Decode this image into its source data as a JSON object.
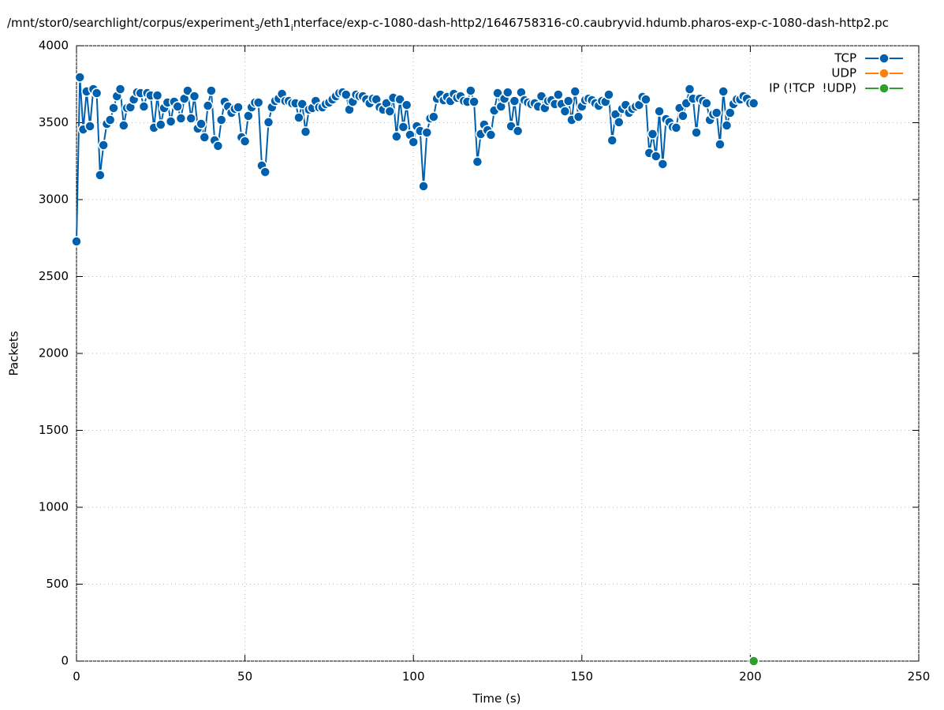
{
  "chart_data": {
    "type": "line",
    "title_parts": [
      "/mnt/stor0/searchlight/corpus/experiment",
      "3",
      "/eth1",
      "i",
      "nterface/exp-c-1080-dash-http2/1646758316-c0.caubryvid.hdumb.pharos-exp-c-1080-dash-http2.pc"
    ],
    "x_label": "Time (s)",
    "y_label": "Packets",
    "xlim": [
      0,
      250
    ],
    "xticks": [
      0,
      50,
      100,
      150,
      200,
      250
    ],
    "ylim": [
      0,
      4000
    ],
    "yticks": [
      0,
      500,
      1000,
      1500,
      2000,
      2500,
      3000,
      3500,
      4000
    ],
    "grid": true,
    "legend": "top-right",
    "series": [
      {
        "name": "TCP",
        "color": "#0060ad",
        "x": [
          0,
          1,
          2,
          3,
          4,
          5,
          6,
          7,
          8,
          9,
          10,
          11,
          12,
          13,
          14,
          15,
          16,
          17,
          18,
          19,
          20,
          21,
          22,
          23,
          24,
          25,
          26,
          27,
          28,
          29,
          30,
          31,
          32,
          33,
          34,
          35,
          36,
          37,
          38,
          39,
          40,
          41,
          42,
          43,
          44,
          45,
          46,
          47,
          48,
          49,
          50,
          51,
          52,
          53,
          54,
          55,
          56,
          57,
          58,
          59,
          60,
          61,
          62,
          63,
          64,
          65,
          66,
          67,
          68,
          69,
          70,
          71,
          72,
          73,
          74,
          75,
          76,
          77,
          78,
          79,
          80,
          81,
          82,
          83,
          84,
          85,
          86,
          87,
          88,
          89,
          90,
          91,
          92,
          93,
          94,
          95,
          96,
          97,
          98,
          99,
          100,
          101,
          102,
          103,
          104,
          105,
          106,
          107,
          108,
          109,
          110,
          111,
          112,
          113,
          114,
          115,
          116,
          117,
          118,
          119,
          120,
          121,
          122,
          123,
          124,
          125,
          126,
          127,
          128,
          129,
          130,
          131,
          132,
          133,
          134,
          135,
          136,
          137,
          138,
          139,
          140,
          141,
          142,
          143,
          144,
          145,
          146,
          147,
          148,
          149,
          150,
          151,
          152,
          153,
          154,
          155,
          156,
          157,
          158,
          159,
          160,
          161,
          162,
          163,
          164,
          165,
          166,
          167,
          168,
          169,
          170,
          171,
          172,
          173,
          174,
          175,
          176,
          177,
          178,
          179,
          180,
          181,
          182,
          183,
          184,
          185,
          186,
          187,
          188,
          189,
          190,
          191,
          192,
          193,
          194,
          195,
          196,
          197,
          198,
          199,
          200,
          201
        ],
        "values": [
          2728,
          3795,
          3456,
          3703,
          3477,
          3718,
          3692,
          3159,
          3354,
          3492,
          3518,
          3595,
          3672,
          3718,
          3482,
          3595,
          3600,
          3651,
          3697,
          3692,
          3605,
          3692,
          3677,
          3467,
          3677,
          3487,
          3595,
          3631,
          3508,
          3636,
          3605,
          3528,
          3656,
          3708,
          3528,
          3672,
          3462,
          3492,
          3405,
          3610,
          3708,
          3385,
          3349,
          3518,
          3636,
          3605,
          3564,
          3590,
          3600,
          3405,
          3379,
          3544,
          3600,
          3631,
          3631,
          3221,
          3179,
          3503,
          3600,
          3641,
          3656,
          3687,
          3641,
          3641,
          3626,
          3626,
          3533,
          3621,
          3441,
          3585,
          3595,
          3641,
          3600,
          3600,
          3621,
          3631,
          3651,
          3672,
          3692,
          3697,
          3682,
          3585,
          3636,
          3682,
          3672,
          3672,
          3651,
          3626,
          3656,
          3651,
          3600,
          3585,
          3626,
          3574,
          3662,
          3410,
          3651,
          3472,
          3615,
          3421,
          3374,
          3477,
          3446,
          3087,
          3436,
          3528,
          3538,
          3656,
          3682,
          3646,
          3667,
          3641,
          3687,
          3662,
          3672,
          3641,
          3636,
          3708,
          3636,
          3246,
          3426,
          3487,
          3451,
          3421,
          3579,
          3692,
          3605,
          3656,
          3697,
          3477,
          3641,
          3446,
          3697,
          3646,
          3631,
          3621,
          3626,
          3605,
          3672,
          3595,
          3641,
          3646,
          3621,
          3682,
          3621,
          3574,
          3641,
          3518,
          3703,
          3538,
          3605,
          3646,
          3656,
          3646,
          3626,
          3610,
          3641,
          3636,
          3682,
          3385,
          3554,
          3503,
          3590,
          3615,
          3564,
          3590,
          3605,
          3615,
          3667,
          3651,
          3303,
          3426,
          3282,
          3574,
          3231,
          3523,
          3503,
          3472,
          3467,
          3595,
          3544,
          3626,
          3718,
          3656,
          3436,
          3656,
          3641,
          3626,
          3518,
          3554,
          3564,
          3359,
          3703,
          3482,
          3564,
          3621,
          3651,
          3651,
          3672,
          3656,
          3626,
          3626
        ]
      },
      {
        "name": "UDP",
        "color": "#ff7f0e",
        "x": [],
        "values": []
      },
      {
        "name": "IP (!TCP  !UDP)",
        "color": "#2ca02c",
        "x": [
          201
        ],
        "values": [
          0
        ]
      }
    ]
  }
}
